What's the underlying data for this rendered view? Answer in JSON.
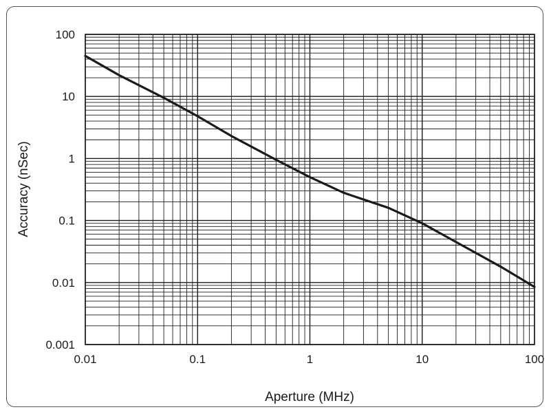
{
  "chart_data": {
    "type": "line",
    "title": "",
    "xlabel": "Aperture (MHz)",
    "ylabel": "Accuracy (nSec)",
    "xscale": "log",
    "yscale": "log",
    "xlim": [
      0.01,
      100
    ],
    "ylim": [
      0.001,
      100
    ],
    "grid": true,
    "legend": "none",
    "x_ticks": [
      "0.01",
      "0.1",
      "1",
      "10",
      "100"
    ],
    "y_ticks": [
      "100",
      "10",
      "1",
      "0.1",
      "0.01",
      "0.001"
    ],
    "series": [
      {
        "x": [
          0.01,
          0.02,
          0.05,
          0.1,
          0.2,
          0.5,
          1,
          2,
          5,
          10,
          20,
          50,
          100
        ],
        "y": [
          45,
          22,
          9.5,
          4.8,
          2.3,
          0.95,
          0.5,
          0.28,
          0.16,
          0.09,
          0.045,
          0.018,
          0.0085
        ]
      }
    ],
    "line_color": "#1a1a1a",
    "grid_color": "#1a1a1a"
  }
}
